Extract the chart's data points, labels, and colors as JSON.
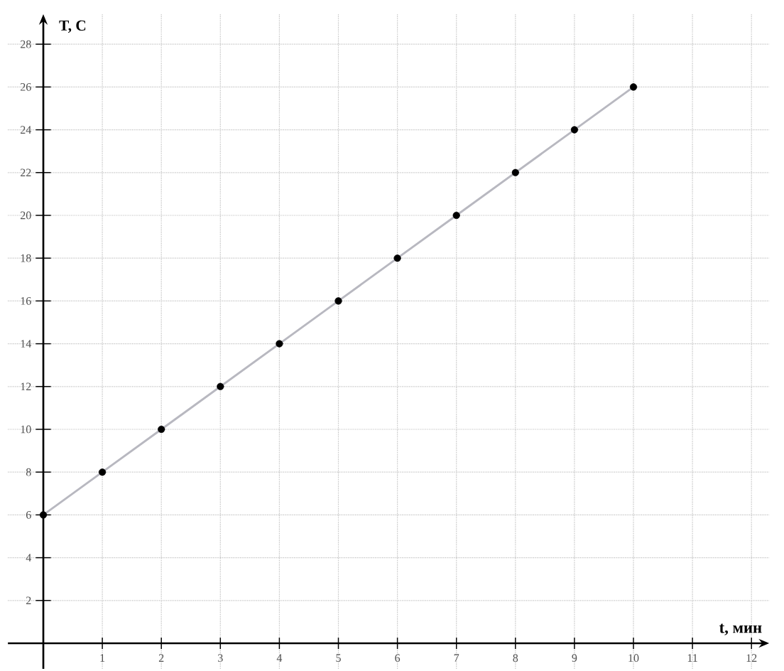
{
  "chart_data": {
    "type": "line",
    "xlabel": "t, мин",
    "ylabel": "T, C",
    "x": [
      0,
      1,
      2,
      3,
      4,
      5,
      6,
      7,
      8,
      9,
      10
    ],
    "series": [
      {
        "color": "#b8b8c0",
        "values": [
          6,
          8,
          10,
          12,
          14,
          16,
          18,
          20,
          22,
          24,
          26
        ]
      }
    ],
    "xlim": [
      -0.6,
      12.3
    ],
    "ylim": [
      -1.2,
      29.4
    ],
    "xticks": [
      1,
      2,
      3,
      4,
      5,
      6,
      7,
      8,
      9,
      10,
      11,
      12
    ],
    "yticks": [
      2,
      4,
      6,
      8,
      10,
      12,
      14,
      16,
      18,
      20,
      22,
      24,
      26,
      28
    ],
    "grid": true,
    "marker": "circle",
    "line_style": "solid"
  }
}
